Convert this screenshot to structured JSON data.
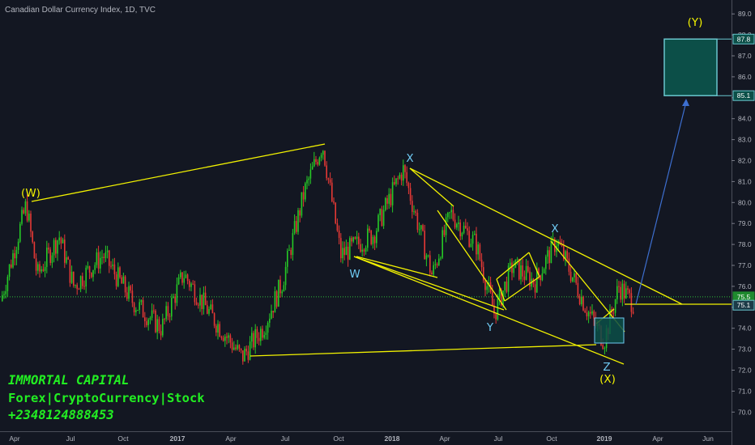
{
  "header": {
    "title": "Canadian Dollar Currency Index, 1D, TVC"
  },
  "watermark": {
    "line1": "IMMORTAL CAPITAL",
    "line2": "Forex|CryptoCurrency|Stock",
    "line3": "+2348124888453"
  },
  "chart_data": {
    "type": "candlestick",
    "title": "Canadian Dollar Currency Index, 1D, TVC",
    "x_ticks": [
      "Apr",
      "Jul",
      "Oct",
      "2017",
      "Apr",
      "Jul",
      "Oct",
      "2018",
      "Apr",
      "Jul",
      "Oct",
      "2019",
      "Apr",
      "Jun"
    ],
    "y_ticks": [
      70,
      71,
      72,
      73,
      74,
      75,
      76,
      77,
      78,
      79,
      80,
      81,
      82,
      83,
      84,
      85,
      86,
      87,
      88,
      89
    ],
    "ylim": [
      69.2,
      89.6
    ],
    "price_path": [
      [
        0,
        75.3
      ],
      [
        0.035,
        79.9
      ],
      [
        0.05,
        76.5
      ],
      [
        0.08,
        78.4
      ],
      [
        0.1,
        76.0
      ],
      [
        0.14,
        77.5
      ],
      [
        0.18,
        75.3
      ],
      [
        0.22,
        74.0
      ],
      [
        0.25,
        76.6
      ],
      [
        0.29,
        74.5
      ],
      [
        0.33,
        72.6
      ],
      [
        0.36,
        74.1
      ],
      [
        0.385,
        76.2
      ],
      [
        0.415,
        80.5
      ],
      [
        0.44,
        82.8
      ],
      [
        0.465,
        77.5
      ],
      [
        0.51,
        78.5
      ],
      [
        0.55,
        81.6
      ],
      [
        0.59,
        76.5
      ],
      [
        0.615,
        79.5
      ],
      [
        0.65,
        78.0
      ],
      [
        0.675,
        74.7
      ],
      [
        0.7,
        77.0
      ],
      [
        0.73,
        76.2
      ],
      [
        0.76,
        78.2
      ],
      [
        0.8,
        75.0
      ],
      [
        0.825,
        73.4
      ],
      [
        0.845,
        76.0
      ],
      [
        0.865,
        75.2
      ]
    ],
    "current_price_line": 75.5,
    "wave_labels": [
      "(W)",
      "W",
      "X",
      "Y",
      "X",
      "Z",
      "(X)",
      "(Y)"
    ],
    "target_zone": [
      85.1,
      87.8
    ],
    "price_tags": [
      "87.8",
      "85.1",
      "75.5",
      "75.1"
    ],
    "colors": {
      "background": "#131722",
      "up": "#26c926",
      "down": "#e53935",
      "trendline": "#f2f200",
      "label": "#6ec9f2",
      "zone": "#0c4f48",
      "projection": "#3d6fd0"
    }
  }
}
